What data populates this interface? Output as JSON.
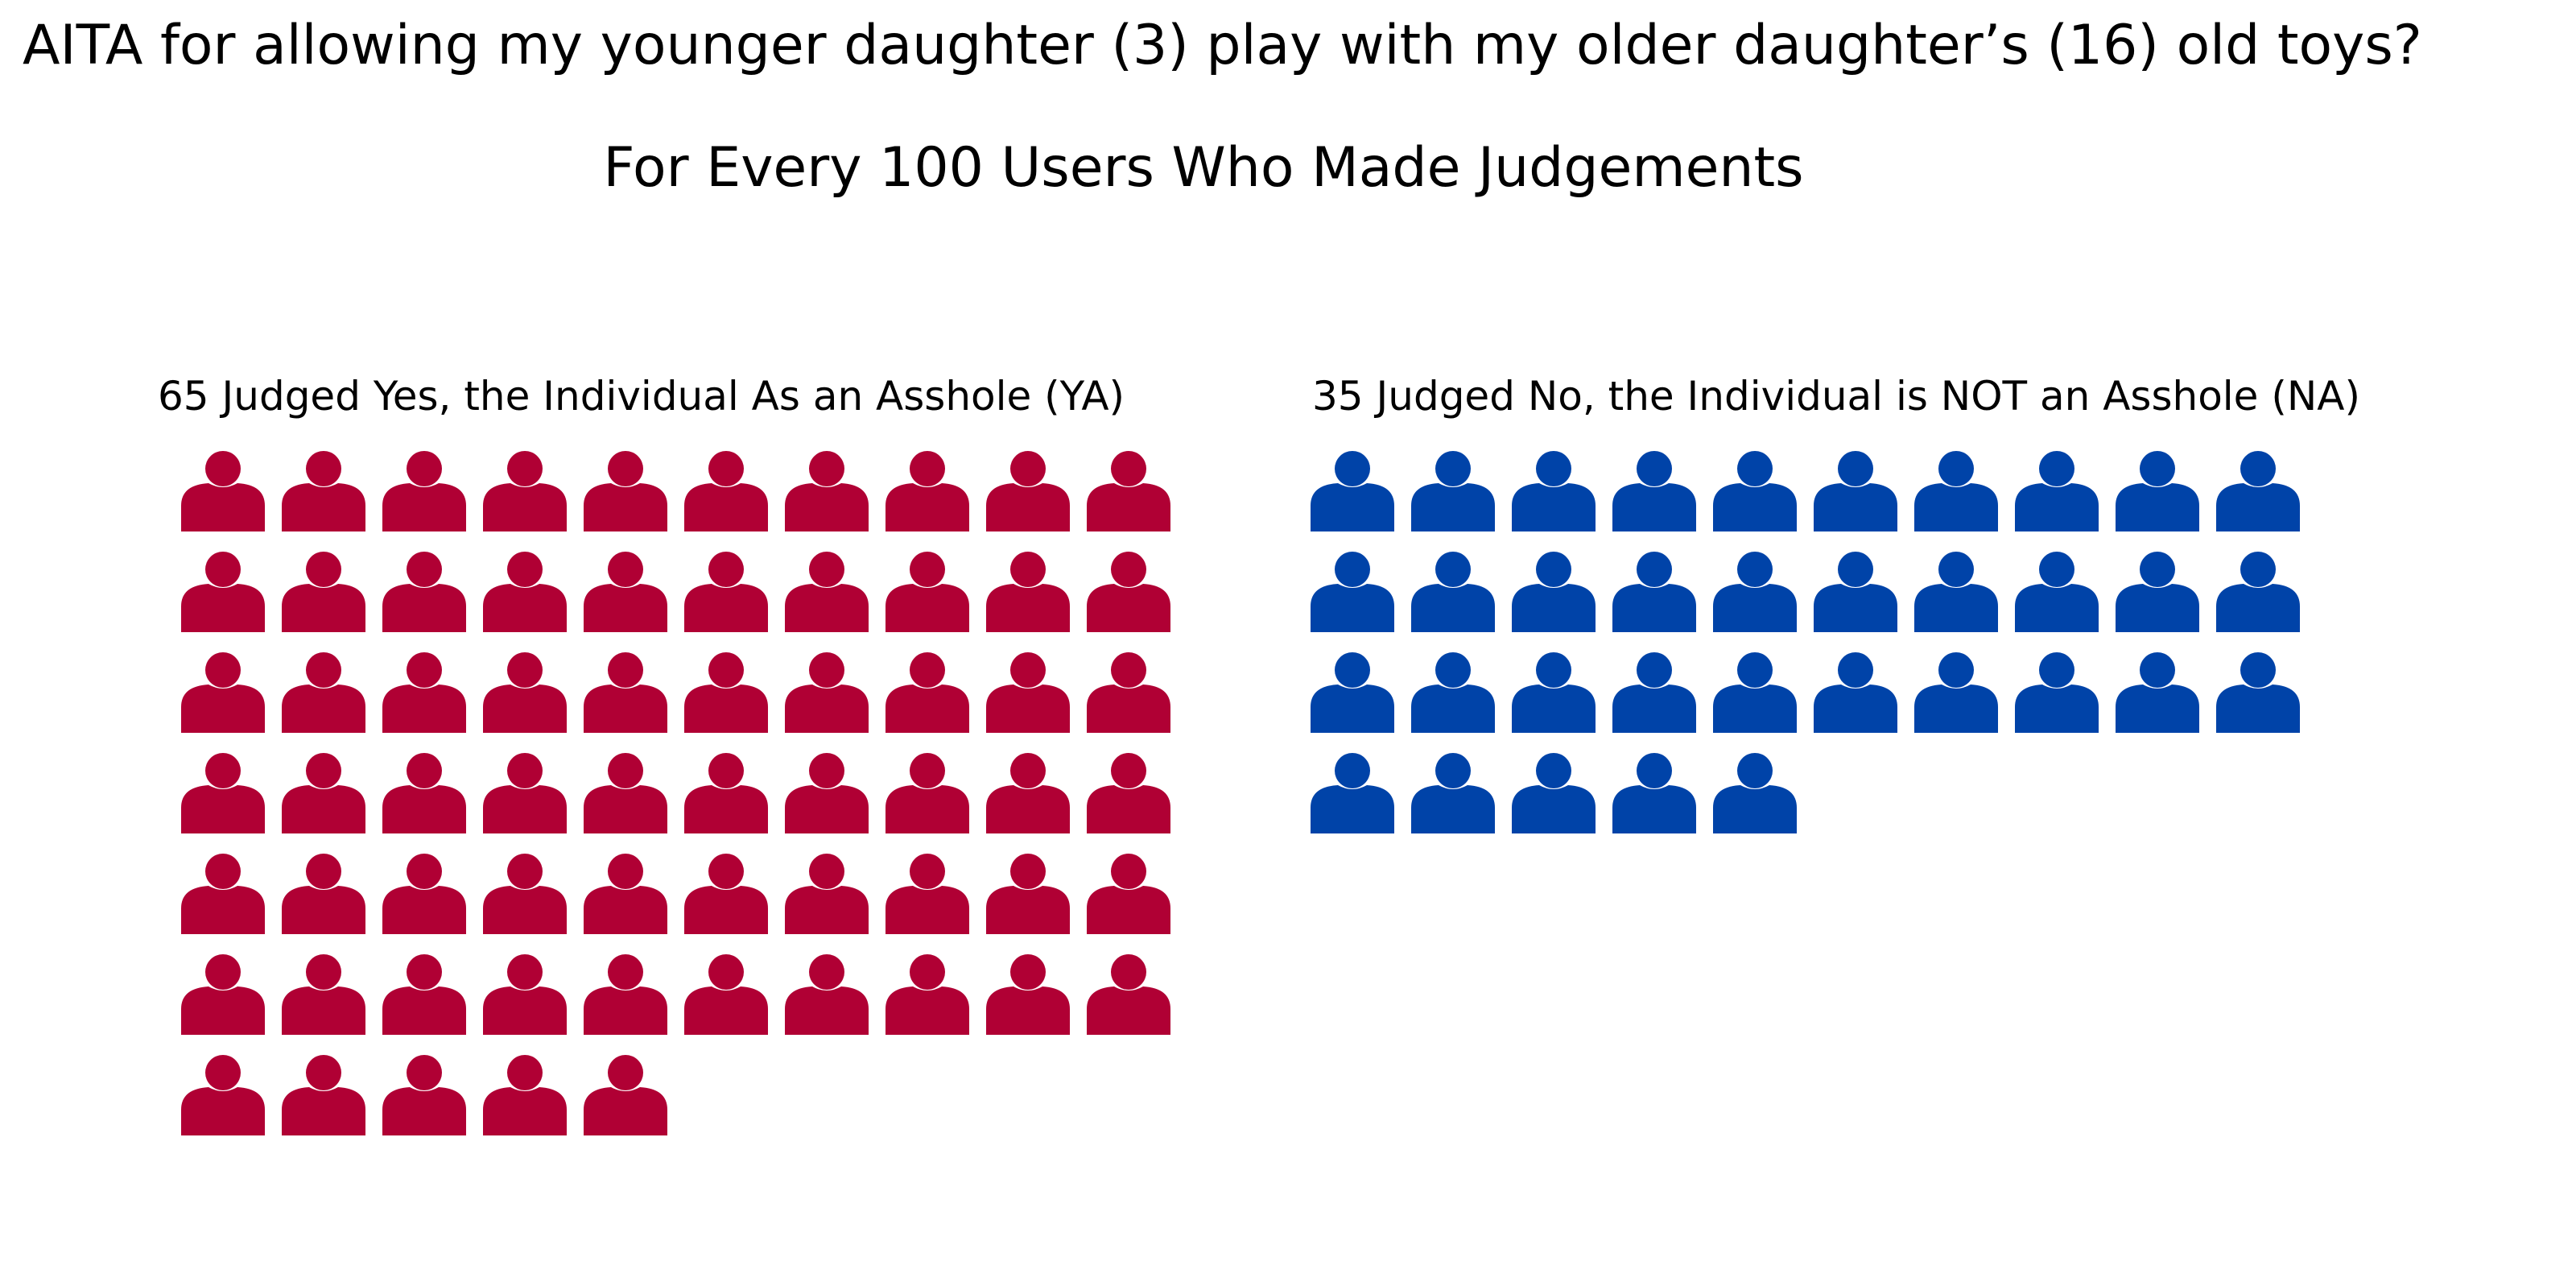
{
  "chart_data": {
    "type": "waffle",
    "title": "AITA for allowing my younger daughter (3) play with my older daughter’s (16) old toys?",
    "subtitle": "For Every 100 Users Who Made Judgements",
    "icon": "person-icon",
    "columns": 10,
    "series": [
      {
        "name": "YA",
        "label": "65 Judged Yes, the Individual As an Asshole (YA)",
        "value": 65,
        "color": "#b00034"
      },
      {
        "name": "NA",
        "label": "35 Judged No, the Individual is NOT an Asshole (NA)",
        "value": 35,
        "color": "#0043a8"
      }
    ]
  }
}
